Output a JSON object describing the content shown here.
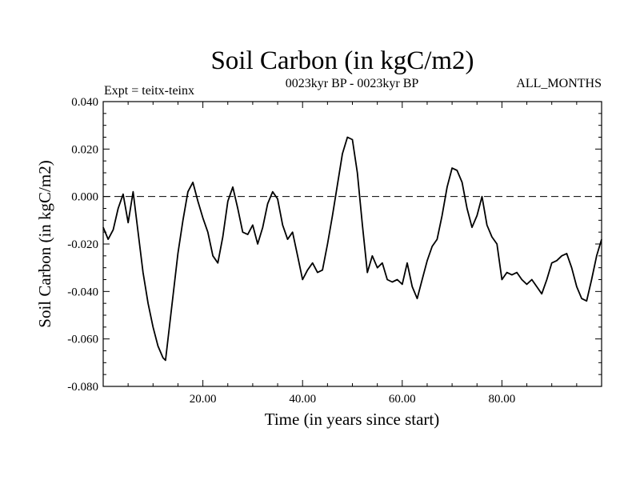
{
  "chart_data": {
    "type": "line",
    "title": "Soil Carbon (in kgC/m2)",
    "subtitle": "0023kyr BP - 0023kyr BP",
    "left_note": "Expt = teitx-teinx",
    "right_note": "ALL_MONTHS",
    "xlabel": "Time (in years since start)",
    "ylabel": "Soil Carbon (in kgC/m2)",
    "xlim": [
      0,
      100
    ],
    "ylim": [
      -0.08,
      0.04
    ],
    "x_ticks": [
      20,
      40,
      60,
      80
    ],
    "x_tick_labels": [
      "20.00",
      "40.00",
      "60.00",
      "80.00"
    ],
    "y_ticks": [
      -0.08,
      -0.06,
      -0.04,
      -0.02,
      0.0,
      0.02,
      0.04
    ],
    "y_tick_labels": [
      "-0.080",
      "-0.060",
      "-0.040",
      "-0.020",
      "0.000",
      "0.020",
      "0.040"
    ],
    "reference_line": {
      "y": 0.0,
      "style": "dashed"
    },
    "series": [
      {
        "name": "Soil Carbon",
        "x": [
          0,
          1,
          2,
          3,
          4,
          5,
          6,
          7,
          8,
          9,
          10,
          11,
          12,
          12.5,
          13,
          14,
          15,
          16,
          17,
          18,
          19,
          20,
          21,
          22,
          23,
          24,
          25,
          26,
          27,
          28,
          29,
          30,
          31,
          32,
          33,
          34,
          35,
          36,
          37,
          38,
          39,
          40,
          41,
          42,
          43,
          44,
          45,
          46,
          47,
          48,
          49,
          50,
          51,
          52,
          53,
          54,
          55,
          56,
          57,
          58,
          59,
          60,
          61,
          62,
          63,
          64,
          65,
          66,
          67,
          68,
          69,
          70,
          71,
          72,
          73,
          74,
          75,
          76,
          77,
          78,
          79,
          80,
          81,
          82,
          83,
          84,
          85,
          86,
          87,
          88,
          89,
          90,
          91,
          92,
          93,
          94,
          95,
          96,
          97,
          98,
          99,
          100
        ],
        "values": [
          -0.013,
          -0.018,
          -0.014,
          -0.005,
          0.001,
          -0.011,
          0.002,
          -0.015,
          -0.032,
          -0.045,
          -0.055,
          -0.063,
          -0.068,
          -0.069,
          -0.06,
          -0.042,
          -0.024,
          -0.01,
          0.002,
          0.006,
          -0.002,
          -0.009,
          -0.015,
          -0.025,
          -0.028,
          -0.017,
          -0.002,
          0.004,
          -0.005,
          -0.015,
          -0.016,
          -0.012,
          -0.02,
          -0.013,
          -0.003,
          0.002,
          -0.001,
          -0.012,
          -0.018,
          -0.015,
          -0.025,
          -0.035,
          -0.031,
          -0.028,
          -0.032,
          -0.031,
          -0.02,
          -0.008,
          0.005,
          0.018,
          0.025,
          0.024,
          0.01,
          -0.012,
          -0.032,
          -0.025,
          -0.03,
          -0.028,
          -0.035,
          -0.036,
          -0.035,
          -0.037,
          -0.028,
          -0.038,
          -0.043,
          -0.035,
          -0.027,
          -0.021,
          -0.018,
          -0.008,
          0.004,
          0.012,
          0.011,
          0.006,
          -0.005,
          -0.013,
          -0.008,
          0.0,
          -0.012,
          -0.017,
          -0.02,
          -0.035,
          -0.032,
          -0.033,
          -0.032,
          -0.035,
          -0.037,
          -0.035,
          -0.038,
          -0.041,
          -0.035,
          -0.028,
          -0.027,
          -0.025,
          -0.024,
          -0.03,
          -0.038,
          -0.043,
          -0.044,
          -0.035,
          -0.025,
          -0.018
        ]
      }
    ]
  }
}
